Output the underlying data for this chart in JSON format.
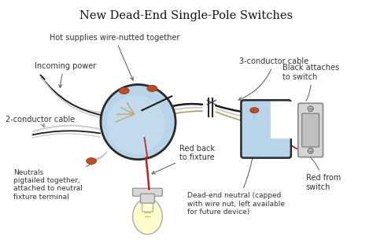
{
  "title": "New Dead-End Single-Pole Switches",
  "title_fontsize": 10.5,
  "bg": "#ffffff",
  "colors": {
    "box_fill": "#b8d4e8",
    "box_edge": "#2a2a2a",
    "wire_black": "#1a1a1a",
    "wire_white": "#c8c8c8",
    "wire_red": "#c0201a",
    "wire_tan": "#b8a060",
    "wire_cap": "#c84820",
    "bulb_fill": "#fffccc",
    "bulb_edge": "#aaaaaa",
    "base_fill": "#d8d8d8",
    "base_edge": "#888888",
    "switch_fill": "#d0d0d0",
    "switch_edge": "#909090",
    "label_color": "#333333",
    "arrow_color": "#555555"
  },
  "labels": {
    "title": "New Dead-End Single-Pole Switches",
    "incoming_power": "Incoming power",
    "hot_supplies": "Hot supplies wire-nutted together",
    "two_conductor": "2-conductor cable",
    "three_conductor": "3-conductor cable",
    "red_back": "Red back\nto fixture",
    "neutrals": "Neutrals\npigtailed together,\nattached to neutral\nfixture terminal",
    "dead_end": "Dead-end neutral (capped\nwith wire nut, left available\nfor future device)",
    "black_attaches": "Black attaches\nto switch",
    "red_from": "Red from\nswitch"
  }
}
